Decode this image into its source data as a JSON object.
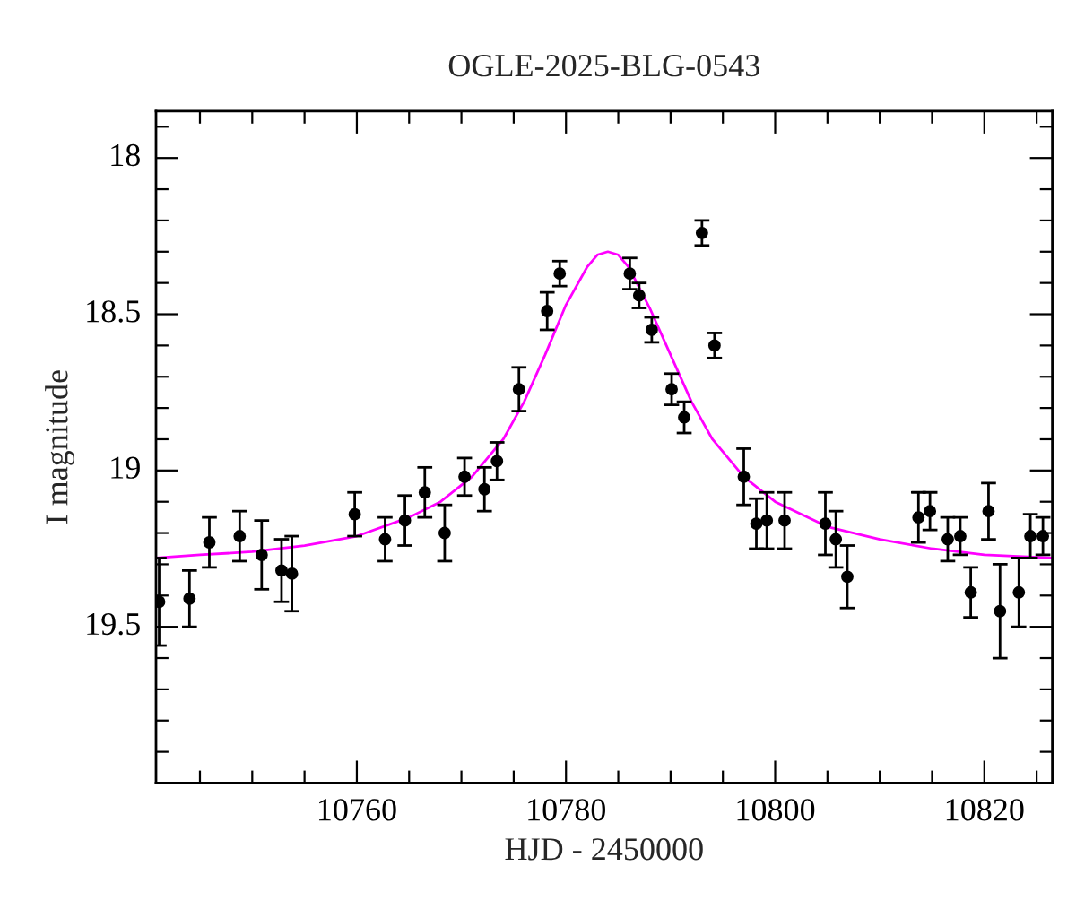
{
  "chart_data": {
    "type": "scatter",
    "title": "OGLE-2025-BLG-0543",
    "xlabel": "HJD - 2450000",
    "ylabel": "I magnitude",
    "series": [
      {
        "color": "#000000",
        "marker": "circle",
        "x": [
          10741.1,
          10744.0,
          10745.9,
          10748.8,
          10750.9,
          10752.8,
          10753.8,
          10759.8,
          10762.7,
          10764.6,
          10766.5,
          10768.4,
          10770.3,
          10772.2,
          10773.4,
          10775.5,
          10778.2,
          10779.4,
          10786.1,
          10787.0,
          10788.2,
          10790.1,
          10791.3,
          10793.0,
          10794.2,
          10797.0,
          10798.2,
          10799.2,
          10800.9,
          10804.8,
          10805.8,
          10806.9,
          10813.7,
          10814.8,
          10816.5,
          10817.7,
          10818.7,
          10820.4,
          10821.5,
          10823.3,
          10824.4,
          10825.6
        ],
        "values": [
          19.42,
          19.41,
          19.23,
          19.21,
          19.27,
          19.32,
          19.33,
          19.14,
          19.22,
          19.16,
          19.07,
          19.2,
          19.02,
          19.06,
          18.97,
          18.74,
          18.49,
          18.37,
          18.37,
          18.44,
          18.55,
          18.74,
          18.83,
          18.24,
          18.6,
          19.02,
          19.17,
          19.16,
          19.16,
          19.17,
          19.22,
          19.34,
          19.15,
          19.13,
          19.22,
          19.21,
          19.39,
          19.13,
          19.45,
          19.39,
          19.21,
          19.21
        ],
        "errors": [
          0.14,
          0.09,
          0.08,
          0.08,
          0.11,
          0.1,
          0.12,
          0.07,
          0.07,
          0.08,
          0.08,
          0.09,
          0.06,
          0.07,
          0.06,
          0.07,
          0.06,
          0.04,
          0.05,
          0.04,
          0.04,
          0.05,
          0.05,
          0.04,
          0.04,
          0.09,
          0.08,
          0.09,
          0.09,
          0.1,
          0.09,
          0.1,
          0.08,
          0.06,
          0.07,
          0.06,
          0.08,
          0.09,
          0.15,
          0.11,
          0.07,
          0.06
        ]
      },
      {
        "type": "line",
        "color": "#ff00ff",
        "marker": "none",
        "x": [
          10740.8,
          10745,
          10750,
          10755,
          10760,
          10765,
          10768,
          10771,
          10774,
          10776,
          10778,
          10780,
          10782,
          10783,
          10784,
          10785,
          10786,
          10788,
          10790,
          10792,
          10794,
          10797,
          10800,
          10805,
          10810,
          10815,
          10820,
          10826.5
        ],
        "values": [
          19.28,
          19.27,
          19.26,
          19.24,
          19.21,
          19.15,
          19.1,
          19.02,
          18.9,
          18.78,
          18.63,
          18.47,
          18.35,
          18.31,
          18.3,
          18.31,
          18.35,
          18.48,
          18.63,
          18.78,
          18.9,
          19.02,
          19.1,
          19.18,
          19.22,
          19.25,
          19.27,
          19.28
        ]
      }
    ],
    "xlim": [
      10740.8,
      10826.5
    ],
    "xticks": [
      {
        "value": 10745,
        "label": null
      },
      {
        "value": 10750,
        "label": null
      },
      {
        "value": 10755,
        "label": null
      },
      10760,
      {
        "value": 10765,
        "label": null
      },
      {
        "value": 10770,
        "label": null
      },
      {
        "value": 10775,
        "label": null
      },
      10780,
      {
        "value": 10785,
        "label": null
      },
      {
        "value": 10790,
        "label": null
      },
      {
        "value": 10795,
        "label": null
      },
      10800,
      {
        "value": 10805,
        "label": null
      },
      {
        "value": 10810,
        "label": null
      },
      {
        "value": 10815,
        "label": null
      },
      10820,
      {
        "value": 10825,
        "label": null
      }
    ],
    "ylim": [
      20.0,
      17.85
    ],
    "yticks": [
      {
        "value": 17.9,
        "label": null
      },
      18,
      {
        "value": 18.1,
        "label": null
      },
      {
        "value": 18.2,
        "label": null
      },
      {
        "value": 18.3,
        "label": null
      },
      {
        "value": 18.4,
        "label": null
      },
      18.5,
      {
        "value": 18.6,
        "label": null
      },
      {
        "value": 18.7,
        "label": null
      },
      {
        "value": 18.8,
        "label": null
      },
      {
        "value": 18.9,
        "label": null
      },
      19,
      {
        "value": 19.1,
        "label": null
      },
      {
        "value": 19.2,
        "label": null
      },
      {
        "value": 19.3,
        "label": null
      },
      {
        "value": 19.4,
        "label": null
      },
      19.5,
      {
        "value": 19.6,
        "label": null
      },
      {
        "value": 19.7,
        "label": null
      },
      {
        "value": 19.8,
        "label": null
      },
      {
        "value": 19.9,
        "label": null
      }
    ],
    "grid": false,
    "legend": false
  }
}
